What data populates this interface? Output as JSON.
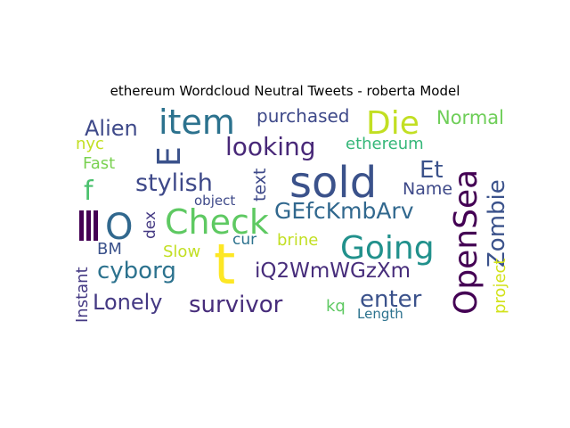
{
  "title": "ethereum Wordcloud Neutral Tweets - roberta Model",
  "words": [
    {
      "text": "sold",
      "color": "#3b528b"
    },
    {
      "text": "t",
      "color": "#fde725"
    },
    {
      "text": "Check",
      "color": "#5ec962"
    },
    {
      "text": "OpenSea",
      "color": "#440154"
    },
    {
      "text": "Going",
      "color": "#21918c"
    },
    {
      "text": "item",
      "color": "#2c728e"
    },
    {
      "text": "Die",
      "color": "#c2df23"
    },
    {
      "text": "O",
      "color": "#31688e"
    },
    {
      "text": "E",
      "color": "#3b528b"
    },
    {
      "text": "Zombie",
      "color": "#3b528b"
    },
    {
      "text": "looking",
      "color": "#482878"
    },
    {
      "text": "stylish",
      "color": "#3e4989"
    },
    {
      "text": "GEfcKmbArv",
      "color": "#31688e"
    },
    {
      "text": "cyborg",
      "color": "#2c728e"
    },
    {
      "text": "iQ2WmWGzXm",
      "color": "#472d7b"
    },
    {
      "text": "survivor",
      "color": "#472d7b"
    },
    {
      "text": "Lonely",
      "color": "#443983"
    },
    {
      "text": "enter",
      "color": "#3b528b"
    },
    {
      "text": "Alien",
      "color": "#3e4989"
    },
    {
      "text": "purchased",
      "color": "#3e4989"
    },
    {
      "text": "Normal",
      "color": "#6ece58"
    },
    {
      "text": "Et",
      "color": "#3b528b"
    },
    {
      "text": "ethereum",
      "color": "#35b779"
    },
    {
      "text": "f",
      "color": "#4ac16d"
    },
    {
      "text": "Name",
      "color": "#3e4989"
    },
    {
      "text": "text",
      "color": "#3e4989"
    },
    {
      "text": "nyc",
      "color": "#c2df23"
    },
    {
      "text": "Fast",
      "color": "#7ad151"
    },
    {
      "text": "object",
      "color": "#3e4989"
    },
    {
      "text": "dex",
      "color": "#443983"
    },
    {
      "text": "Slow",
      "color": "#c2df23"
    },
    {
      "text": "cur",
      "color": "#2c728e"
    },
    {
      "text": "brine",
      "color": "#c2df23"
    },
    {
      "text": "BM",
      "color": "#3b528b"
    },
    {
      "text": "Instant",
      "color": "#443983"
    },
    {
      "text": "project",
      "color": "#d2e21b"
    },
    {
      "text": "kq",
      "color": "#5ec962"
    },
    {
      "text": "Length",
      "color": "#2c728e"
    }
  ],
  "bar_color": "#440154"
}
